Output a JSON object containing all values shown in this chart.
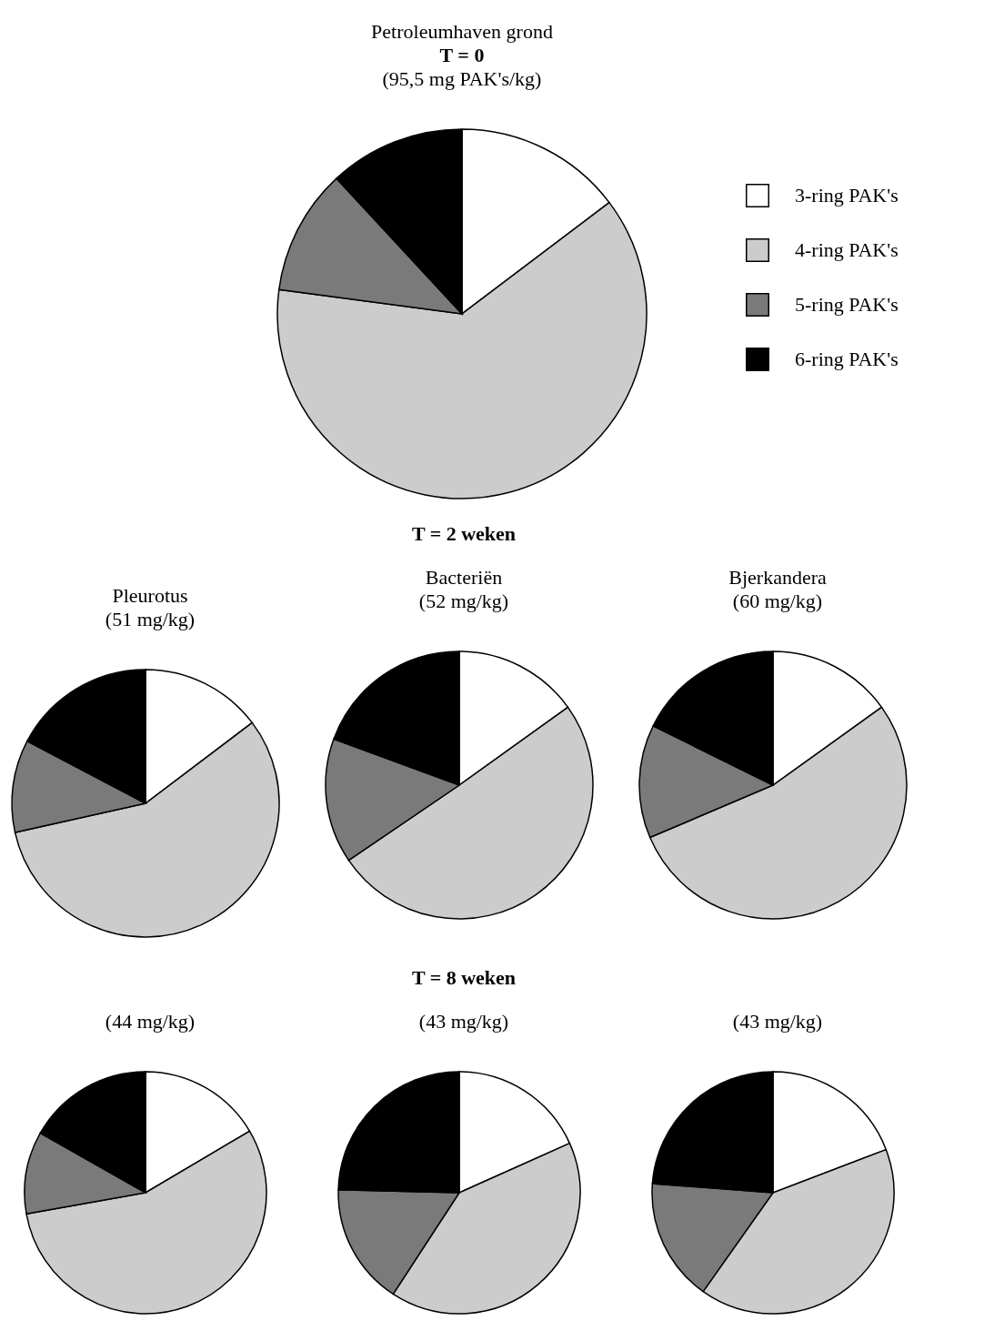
{
  "chart_data": [
    {
      "type": "pie",
      "title": "Petroleumhaven grond",
      "subtitle": "T = 0",
      "annotations": [
        "(95,5 mg PAK's/kg)"
      ],
      "categories": [
        "3-ring PAK's",
        "4-ring PAK's",
        "5-ring PAK's",
        "6-ring PAK's"
      ],
      "values": [
        14.7,
        62.4,
        11.0,
        11.9
      ],
      "colors": [
        "#ffffff",
        "#cccccc",
        "#7a7a7a",
        "#000000"
      ],
      "legend": "right"
    },
    {
      "type": "pie",
      "title": "Pleurotus",
      "subtitle": "(51 mg/kg)",
      "values": [
        14.7,
        56.8,
        11.2,
        17.3
      ],
      "colors": [
        "#ffffff",
        "#cccccc",
        "#7a7a7a",
        "#000000"
      ]
    },
    {
      "type": "pie",
      "title": "Bacteriën",
      "subtitle": "(52 mg/kg)",
      "annotations": [
        "T = 2 weken"
      ],
      "values": [
        15.1,
        50.4,
        15.1,
        19.4
      ],
      "colors": [
        "#ffffff",
        "#cccccc",
        "#7a7a7a",
        "#000000"
      ]
    },
    {
      "type": "pie",
      "title": "Bjerkandera",
      "subtitle": "(60 mg/kg)",
      "values": [
        15.1,
        53.5,
        13.7,
        17.7
      ],
      "colors": [
        "#ffffff",
        "#cccccc",
        "#7a7a7a",
        "#000000"
      ]
    },
    {
      "type": "pie",
      "subtitle": "(44 mg/kg)",
      "values": [
        16.5,
        55.7,
        11.0,
        16.8
      ],
      "colors": [
        "#ffffff",
        "#cccccc",
        "#7a7a7a",
        "#000000"
      ]
    },
    {
      "type": "pie",
      "subtitle": "(43 mg/kg)",
      "annotations": [
        "T = 8 weken"
      ],
      "values": [
        18.3,
        40.9,
        16.2,
        24.6
      ],
      "colors": [
        "#ffffff",
        "#cccccc",
        "#7a7a7a",
        "#000000"
      ]
    },
    {
      "type": "pie",
      "subtitle": "(43 mg/kg)",
      "values": [
        19.2,
        40.6,
        16.4,
        23.8
      ],
      "colors": [
        "#ffffff",
        "#cccccc",
        "#7a7a7a",
        "#000000"
      ]
    }
  ]
}
